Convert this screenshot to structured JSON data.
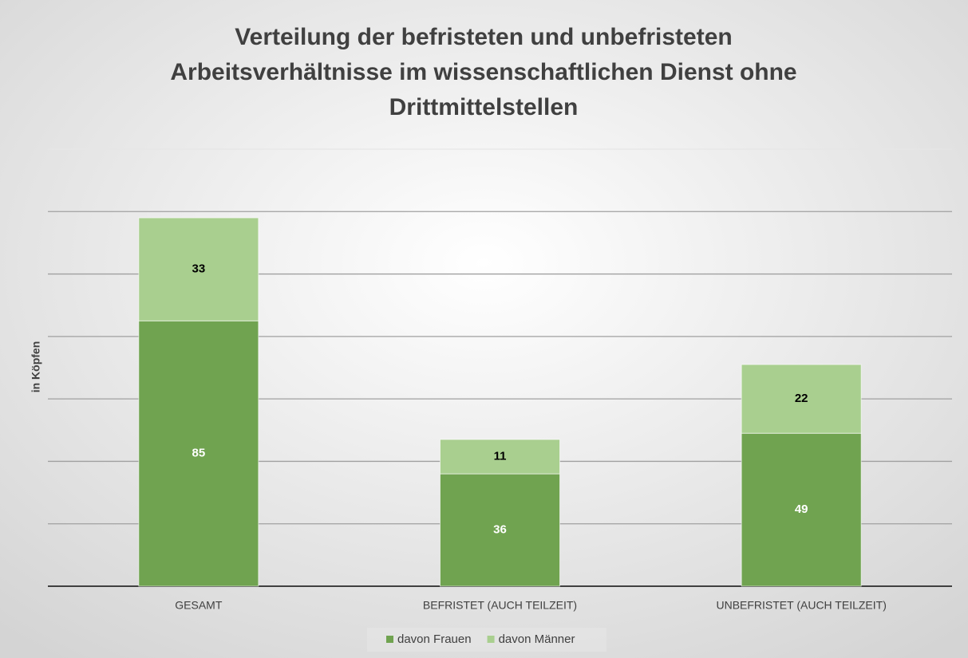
{
  "chart_data": {
    "type": "stacked_bar",
    "title": "Verteilung der befristeten und unbefristeten Arbeitsverhältnisse im wissenschaftlichen Dienst ohne Drittmittelstellen",
    "y_label": "in Köpfen",
    "categories": [
      "GESAMT",
      "BEFRISTET (AUCH TEILZEIT)",
      "UNBEFRISTET (AUCH TEILZEIT)"
    ],
    "series": [
      {
        "name": "davon Frauen",
        "color": "#70a350",
        "values": [
          85,
          36,
          49
        ]
      },
      {
        "name": "davon Männer",
        "color": "#a9cf8f",
        "values": [
          33,
          11,
          22
        ]
      }
    ],
    "ylim": [
      0,
      140
    ],
    "yticks": [
      0,
      20,
      40,
      60,
      80,
      100,
      120,
      140
    ],
    "grid": true,
    "legend": "bottom"
  }
}
